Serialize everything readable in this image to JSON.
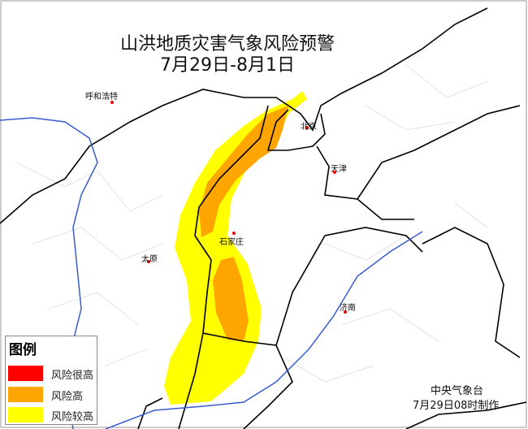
{
  "title": "山洪地质灾害气象风险预警",
  "subtitle": "7月29日-8月1日",
  "cities": [
    "呼和浩特",
    "北京",
    "天津",
    "石家庄",
    "太原",
    "济南"
  ],
  "legend": {
    "title": "图例",
    "items": [
      {
        "label": "风险很高",
        "color": "#ff0000"
      },
      {
        "label": "风险高",
        "color": "#ffa500"
      },
      {
        "label": "风险较高",
        "color": "#ffff00"
      }
    ]
  },
  "credit": {
    "agency": "中央气象台",
    "issued": "7月29日08时制作"
  }
}
